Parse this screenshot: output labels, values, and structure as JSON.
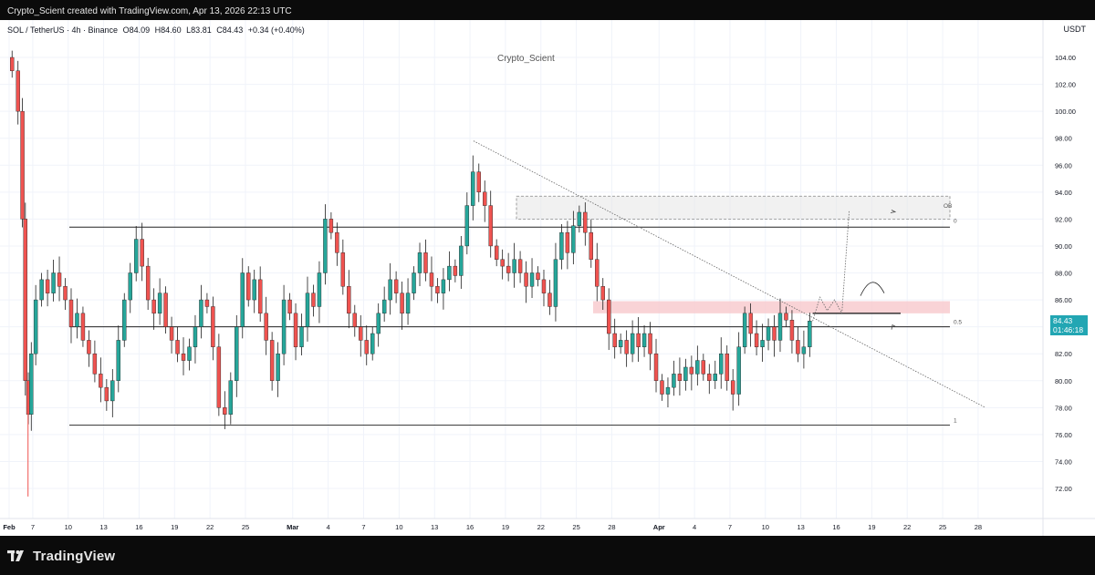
{
  "header": {
    "caption": "Crypto_Scient created with TradingView.com, Apr 13, 2026 22:13 UTC"
  },
  "legend": {
    "symbol": "SOL / TetherUS · 4h · Binance",
    "open": "O84.09",
    "high": "H84.60",
    "low": "L83.81",
    "close": "C84.43",
    "change": "+0.34 (+0.40%)"
  },
  "watermark": "Crypto_Scient",
  "currency": "USDT",
  "last_price": {
    "price": "84.43",
    "countdown": "01:46:18"
  },
  "footer": {
    "brand": "TradingView"
  },
  "colors": {
    "up": "#26a69a",
    "down": "#ef5350",
    "wick": "#1e1e1e",
    "zone_supply": "#f8c8cc",
    "zone_grey": "#e6e6e6",
    "accent": "#22a6b3"
  },
  "chart_data": {
    "type": "candlestick",
    "y_ticks": [
      "72.00",
      "74.00",
      "76.00",
      "78.00",
      "80.00",
      "82.00",
      "84.00",
      "86.00",
      "88.00",
      "90.00",
      "92.00",
      "94.00",
      "96.00",
      "98.00",
      "100.00",
      "102.00",
      "104.00"
    ],
    "ylim": [
      71,
      106
    ],
    "x_ticks": [
      {
        "date": "2026-02-05",
        "label": "Feb"
      },
      {
        "date": "2026-02-07",
        "label": "7"
      },
      {
        "date": "2026-02-10",
        "label": "10"
      },
      {
        "date": "2026-02-13",
        "label": "13"
      },
      {
        "date": "2026-02-16",
        "label": "16"
      },
      {
        "date": "2026-02-19",
        "label": "19"
      },
      {
        "date": "2026-02-22",
        "label": "22"
      },
      {
        "date": "2026-02-25",
        "label": "25"
      },
      {
        "date": "2026-03-01",
        "label": "Mar"
      },
      {
        "date": "2026-03-04",
        "label": "4"
      },
      {
        "date": "2026-03-07",
        "label": "7"
      },
      {
        "date": "2026-03-10",
        "label": "10"
      },
      {
        "date": "2026-03-13",
        "label": "13"
      },
      {
        "date": "2026-03-16",
        "label": "16"
      },
      {
        "date": "2026-03-19",
        "label": "19"
      },
      {
        "date": "2026-03-22",
        "label": "22"
      },
      {
        "date": "2026-03-25",
        "label": "25"
      },
      {
        "date": "2026-03-28",
        "label": "28"
      },
      {
        "date": "2026-04-01",
        "label": "Apr"
      },
      {
        "date": "2026-04-04",
        "label": "4"
      },
      {
        "date": "2026-04-07",
        "label": "7"
      },
      {
        "date": "2026-04-10",
        "label": "10"
      },
      {
        "date": "2026-04-13",
        "label": "13"
      },
      {
        "date": "2026-04-16",
        "label": "16"
      },
      {
        "date": "2026-04-19",
        "label": "19"
      },
      {
        "date": "2026-04-22",
        "label": "22"
      },
      {
        "date": "2026-04-25",
        "label": "25"
      },
      {
        "date": "2026-04-28",
        "label": "28"
      }
    ],
    "series": [
      {
        "date": "2026-02-05",
        "close": 103.0
      },
      {
        "date": "2026-02-05",
        "close": 100.0
      },
      {
        "date": "2026-02-06",
        "close": 92.0
      },
      {
        "date": "2026-02-06",
        "close": 80.0
      },
      {
        "date": "2026-02-06",
        "close": 77.5
      },
      {
        "date": "2026-02-06",
        "close": 82.0
      },
      {
        "date": "2026-02-07",
        "close": 86.0
      },
      {
        "date": "2026-02-07",
        "close": 87.5
      },
      {
        "date": "2026-02-08",
        "close": 86.5
      },
      {
        "date": "2026-02-08",
        "close": 88.0
      },
      {
        "date": "2026-02-09",
        "close": 87.0
      },
      {
        "date": "2026-02-09",
        "close": 86.0
      },
      {
        "date": "2026-02-10",
        "close": 84.0
      },
      {
        "date": "2026-02-10",
        "close": 85.0
      },
      {
        "date": "2026-02-11",
        "close": 83.0
      },
      {
        "date": "2026-02-11",
        "close": 82.0
      },
      {
        "date": "2026-02-12",
        "close": 80.5
      },
      {
        "date": "2026-02-12",
        "close": 79.5
      },
      {
        "date": "2026-02-13",
        "close": 78.5
      },
      {
        "date": "2026-02-13",
        "close": 80.0
      },
      {
        "date": "2026-02-14",
        "close": 83.0
      },
      {
        "date": "2026-02-14",
        "close": 86.0
      },
      {
        "date": "2026-02-15",
        "close": 88.0
      },
      {
        "date": "2026-02-15",
        "close": 90.5
      },
      {
        "date": "2026-02-16",
        "close": 88.5
      },
      {
        "date": "2026-02-16",
        "close": 86.0
      },
      {
        "date": "2026-02-17",
        "close": 85.0
      },
      {
        "date": "2026-02-17",
        "close": 86.5
      },
      {
        "date": "2026-02-18",
        "close": 84.0
      },
      {
        "date": "2026-02-18",
        "close": 83.0
      },
      {
        "date": "2026-02-19",
        "close": 82.0
      },
      {
        "date": "2026-02-19",
        "close": 81.5
      },
      {
        "date": "2026-02-20",
        "close": 82.5
      },
      {
        "date": "2026-02-20",
        "close": 84.0
      },
      {
        "date": "2026-02-21",
        "close": 86.0
      },
      {
        "date": "2026-02-21",
        "close": 85.5
      },
      {
        "date": "2026-02-22",
        "close": 82.5
      },
      {
        "date": "2026-02-22",
        "close": 78.0
      },
      {
        "date": "2026-02-23",
        "close": 77.5
      },
      {
        "date": "2026-02-23",
        "close": 80.0
      },
      {
        "date": "2026-02-24",
        "close": 84.0
      },
      {
        "date": "2026-02-24",
        "close": 88.0
      },
      {
        "date": "2026-02-25",
        "close": 86.0
      },
      {
        "date": "2026-02-25",
        "close": 87.5
      },
      {
        "date": "2026-02-26",
        "close": 85.0
      },
      {
        "date": "2026-02-26",
        "close": 83.0
      },
      {
        "date": "2026-02-27",
        "close": 80.0
      },
      {
        "date": "2026-02-27",
        "close": 82.0
      },
      {
        "date": "2026-02-28",
        "close": 86.0
      },
      {
        "date": "2026-02-28",
        "close": 85.0
      },
      {
        "date": "2026-03-01",
        "close": 82.5
      },
      {
        "date": "2026-03-01",
        "close": 84.0
      },
      {
        "date": "2026-03-02",
        "close": 86.5
      },
      {
        "date": "2026-03-02",
        "close": 85.5
      },
      {
        "date": "2026-03-03",
        "close": 88.0
      },
      {
        "date": "2026-03-03",
        "close": 92.0
      },
      {
        "date": "2026-03-04",
        "close": 91.0
      },
      {
        "date": "2026-03-04",
        "close": 89.5
      },
      {
        "date": "2026-03-05",
        "close": 87.0
      },
      {
        "date": "2026-03-05",
        "close": 85.0
      },
      {
        "date": "2026-03-06",
        "close": 84.0
      },
      {
        "date": "2026-03-06",
        "close": 83.0
      },
      {
        "date": "2026-03-07",
        "close": 82.0
      },
      {
        "date": "2026-03-07",
        "close": 83.5
      },
      {
        "date": "2026-03-08",
        "close": 85.0
      },
      {
        "date": "2026-03-08",
        "close": 86.0
      },
      {
        "date": "2026-03-09",
        "close": 87.5
      },
      {
        "date": "2026-03-09",
        "close": 86.5
      },
      {
        "date": "2026-03-10",
        "close": 85.0
      },
      {
        "date": "2026-03-10",
        "close": 86.5
      },
      {
        "date": "2026-03-11",
        "close": 88.0
      },
      {
        "date": "2026-03-11",
        "close": 89.5
      },
      {
        "date": "2026-03-12",
        "close": 88.0
      },
      {
        "date": "2026-03-12",
        "close": 87.0
      },
      {
        "date": "2026-03-13",
        "close": 86.5
      },
      {
        "date": "2026-03-13",
        "close": 87.5
      },
      {
        "date": "2026-03-14",
        "close": 88.5
      },
      {
        "date": "2026-03-14",
        "close": 87.8
      },
      {
        "date": "2026-03-15",
        "close": 90.0
      },
      {
        "date": "2026-03-15",
        "close": 93.0
      },
      {
        "date": "2026-03-16",
        "close": 95.5
      },
      {
        "date": "2026-03-16",
        "close": 94.0
      },
      {
        "date": "2026-03-17",
        "close": 93.0
      },
      {
        "date": "2026-03-17",
        "close": 90.0
      },
      {
        "date": "2026-03-18",
        "close": 89.0
      },
      {
        "date": "2026-03-18",
        "close": 88.5
      },
      {
        "date": "2026-03-19",
        "close": 88.0
      },
      {
        "date": "2026-03-19",
        "close": 89.0
      },
      {
        "date": "2026-03-20",
        "close": 88.0
      },
      {
        "date": "2026-03-20",
        "close": 87.0
      },
      {
        "date": "2026-03-21",
        "close": 88.0
      },
      {
        "date": "2026-03-21",
        "close": 87.5
      },
      {
        "date": "2026-03-22",
        "close": 86.5
      },
      {
        "date": "2026-03-22",
        "close": 85.5
      },
      {
        "date": "2026-03-23",
        "close": 89.0
      },
      {
        "date": "2026-03-23",
        "close": 91.0
      },
      {
        "date": "2026-03-24",
        "close": 89.5
      },
      {
        "date": "2026-03-24",
        "close": 91.5
      },
      {
        "date": "2026-03-25",
        "close": 92.5
      },
      {
        "date": "2026-03-25",
        "close": 91.0
      },
      {
        "date": "2026-03-26",
        "close": 89.0
      },
      {
        "date": "2026-03-26",
        "close": 87.0
      },
      {
        "date": "2026-03-27",
        "close": 86.0
      },
      {
        "date": "2026-03-27",
        "close": 83.5
      },
      {
        "date": "2026-03-28",
        "close": 82.5
      },
      {
        "date": "2026-03-28",
        "close": 83.0
      },
      {
        "date": "2026-03-29",
        "close": 82.0
      },
      {
        "date": "2026-03-29",
        "close": 83.5
      },
      {
        "date": "2026-03-30",
        "close": 82.5
      },
      {
        "date": "2026-03-30",
        "close": 83.5
      },
      {
        "date": "2026-03-31",
        "close": 82.0
      },
      {
        "date": "2026-03-31",
        "close": 80.0
      },
      {
        "date": "2026-04-01",
        "close": 79.0
      },
      {
        "date": "2026-04-01",
        "close": 79.5
      },
      {
        "date": "2026-04-02",
        "close": 80.5
      },
      {
        "date": "2026-04-02",
        "close": 80.0
      },
      {
        "date": "2026-04-03",
        "close": 81.0
      },
      {
        "date": "2026-04-03",
        "close": 80.5
      },
      {
        "date": "2026-04-04",
        "close": 81.5
      },
      {
        "date": "2026-04-04",
        "close": 80.5
      },
      {
        "date": "2026-04-05",
        "close": 80.0
      },
      {
        "date": "2026-04-05",
        "close": 80.5
      },
      {
        "date": "2026-04-06",
        "close": 82.0
      },
      {
        "date": "2026-04-06",
        "close": 80.0
      },
      {
        "date": "2026-04-07",
        "close": 79.0
      },
      {
        "date": "2026-04-07",
        "close": 82.5
      },
      {
        "date": "2026-04-08",
        "close": 85.0
      },
      {
        "date": "2026-04-08",
        "close": 83.5
      },
      {
        "date": "2026-04-09",
        "close": 82.5
      },
      {
        "date": "2026-04-09",
        "close": 83.0
      },
      {
        "date": "2026-04-10",
        "close": 84.0
      },
      {
        "date": "2026-04-10",
        "close": 83.0
      },
      {
        "date": "2026-04-11",
        "close": 85.0
      },
      {
        "date": "2026-04-11",
        "close": 84.5
      },
      {
        "date": "2026-04-12",
        "close": 83.0
      },
      {
        "date": "2026-04-12",
        "close": 82.0
      },
      {
        "date": "2026-04-13",
        "close": 82.5
      },
      {
        "date": "2026-04-13",
        "close": 84.43
      }
    ],
    "levels": [
      {
        "price": 91.4,
        "label": ""
      },
      {
        "price": 84.0,
        "label": "0.5"
      },
      {
        "price": 76.7,
        "label": "1"
      }
    ],
    "zones": [
      {
        "top": 93.7,
        "bottom": 92.0,
        "label_top": "OB",
        "label_bottom": "0"
      },
      {
        "top": 85.9,
        "bottom": 85.0,
        "label_top": "",
        "label_bottom": ""
      }
    ],
    "trendline": {
      "from": {
        "date": "2026-03-16",
        "price": 97.8
      },
      "to": {
        "date": "2026-04-22",
        "price": 78.0
      }
    },
    "grid": true,
    "legend_position": "top-left"
  }
}
